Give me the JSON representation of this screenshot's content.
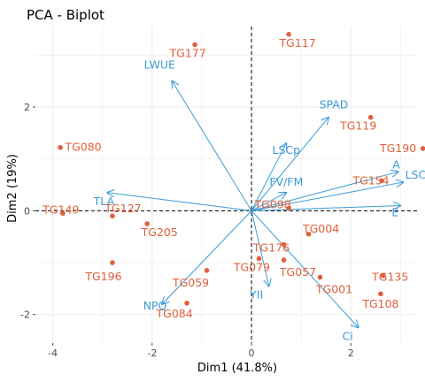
{
  "chart_data": {
    "type": "scatter",
    "title": "PCA - Biplot",
    "xlabel": "Dim1 (41.8%)",
    "ylabel": "Dim2 (19%)",
    "xlim": [
      -4.35,
      3.35
    ],
    "ylim": [
      -2.55,
      3.55
    ],
    "x_ticks": [
      -4,
      -2,
      0,
      2
    ],
    "y_ticks": [
      -2,
      0,
      2
    ],
    "x_tick_labels": [
      "-4",
      "-2",
      "0",
      "2"
    ],
    "y_tick_labels": [
      "-2",
      "0",
      "2"
    ],
    "grid": true,
    "colors": {
      "individuals": "#e0603a",
      "variables": "#3a9bd6",
      "grid": "#ebebeb",
      "reference_line": "#000000"
    },
    "individuals": [
      {
        "label": "TG117",
        "x": 0.75,
        "y": 3.4
      },
      {
        "label": "TG177",
        "x": -1.14,
        "y": 3.2
      },
      {
        "label": "TG119",
        "x": 2.4,
        "y": 1.8
      },
      {
        "label": "TG190",
        "x": 3.45,
        "y": 1.2
      },
      {
        "label": "TG080",
        "x": -3.85,
        "y": 1.22
      },
      {
        "label": "TG154",
        "x": 2.62,
        "y": 0.58
      },
      {
        "label": "TG098",
        "x": 0.75,
        "y": 0.05
      },
      {
        "label": "TG149",
        "x": -3.8,
        "y": -0.05
      },
      {
        "label": "TG127",
        "x": -2.8,
        "y": -0.1
      },
      {
        "label": "TG205",
        "x": -2.1,
        "y": -0.25
      },
      {
        "label": "TG004",
        "x": 1.15,
        "y": -0.45
      },
      {
        "label": "TG176",
        "x": 0.65,
        "y": -0.65
      },
      {
        "label": "TG196",
        "x": -2.8,
        "y": -1.0
      },
      {
        "label": "TG079",
        "x": 0.15,
        "y": -0.92
      },
      {
        "label": "TG057",
        "x": 0.65,
        "y": -0.95
      },
      {
        "label": "TG059",
        "x": -0.9,
        "y": -1.15
      },
      {
        "label": "TG001",
        "x": 1.38,
        "y": -1.28
      },
      {
        "label": "TG135",
        "x": 2.65,
        "y": -1.25
      },
      {
        "label": "TG108",
        "x": 2.6,
        "y": -1.6
      },
      {
        "label": "TG084",
        "x": -1.3,
        "y": -1.78
      }
    ],
    "variables": [
      {
        "label": "LWUE",
        "x": -1.6,
        "y": 2.5
      },
      {
        "label": "SPAD",
        "x": 1.55,
        "y": 1.8
      },
      {
        "label": "LSCp",
        "x": 0.7,
        "y": 1.3
      },
      {
        "label": "A",
        "x": 2.95,
        "y": 0.75
      },
      {
        "label": "LSCi",
        "x": 3.05,
        "y": 0.55
      },
      {
        "label": "FV/FM",
        "x": 0.7,
        "y": 0.35
      },
      {
        "label": "TLA",
        "x": -2.9,
        "y": 0.35
      },
      {
        "label": "E",
        "x": 3.0,
        "y": 0.1
      },
      {
        "label": "NPQ",
        "x": -1.8,
        "y": -1.8
      },
      {
        "label": "YII",
        "x": 0.35,
        "y": -1.45
      },
      {
        "label": "Ci",
        "x": 2.15,
        "y": -2.25
      }
    ]
  }
}
